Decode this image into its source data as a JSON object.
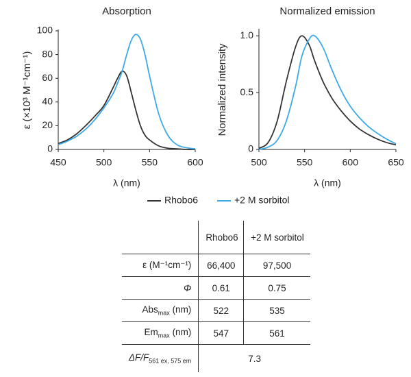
{
  "chart_data": [
    {
      "type": "line",
      "title": "Absorption",
      "x_label": "λ (nm)",
      "y_label": "ε (×10³ M⁻¹cm⁻¹)",
      "x": [
        450,
        460,
        470,
        480,
        490,
        500,
        510,
        515,
        520,
        525,
        530,
        535,
        540,
        545,
        550,
        560,
        570,
        580,
        590,
        600
      ],
      "series": [
        {
          "name": "Rhobo6",
          "color": "#333333",
          "values": [
            5,
            8,
            13,
            20,
            28,
            37,
            52,
            60,
            66,
            62,
            48,
            33,
            20,
            12,
            8,
            3,
            1,
            0.5,
            0,
            0
          ]
        },
        {
          "name": "+2 M sorbitol",
          "color": "#3fa9e8",
          "values": [
            4,
            7,
            11,
            17,
            25,
            35,
            47,
            56,
            66,
            80,
            92,
            97,
            93,
            80,
            62,
            30,
            12,
            4,
            1.5,
            0.5
          ]
        }
      ],
      "xlim": [
        450,
        600
      ],
      "xticks": [
        450,
        500,
        550,
        600
      ],
      "ylim": [
        0,
        100
      ],
      "yticks": [
        0,
        20,
        40,
        60,
        80,
        100
      ]
    },
    {
      "type": "line",
      "title": "Normalized emission",
      "x_label": "λ (nm)",
      "y_label": "Normalized intensity",
      "x": [
        500,
        510,
        520,
        530,
        540,
        547,
        555,
        561,
        570,
        580,
        590,
        600,
        610,
        620,
        630,
        640,
        650
      ],
      "series": [
        {
          "color": "#333333",
          "values": [
            0.01,
            0.06,
            0.25,
            0.6,
            0.9,
            1.0,
            0.92,
            0.78,
            0.6,
            0.45,
            0.34,
            0.25,
            0.18,
            0.13,
            0.09,
            0.06,
            0.04
          ]
        },
        {
          "color": "#3fa9e8",
          "values": [
            0,
            0.02,
            0.08,
            0.25,
            0.55,
            0.82,
            0.97,
            1.0,
            0.9,
            0.7,
            0.52,
            0.38,
            0.28,
            0.2,
            0.14,
            0.09,
            0.05
          ]
        }
      ],
      "xlim": [
        500,
        650
      ],
      "xticks": [
        500,
        550,
        600,
        650
      ],
      "ylim": [
        0,
        1.05
      ],
      "yticks": [
        0,
        0.5,
        {
          "value": 1,
          "label": "1.0"
        }
      ]
    }
  ],
  "table": {
    "columns": [
      "Rhobo6",
      "+2 M sorbitol"
    ],
    "rows": [
      {
        "label": "ε (M⁻¹cm⁻¹)",
        "values": [
          "66,400",
          "97,500"
        ]
      },
      {
        "label": "Φ",
        "values": [
          "0.61",
          "0.75"
        ]
      },
      {
        "label": "Abs",
        "sub": "max",
        "unit": "(nm)",
        "values": [
          "522",
          "535"
        ]
      },
      {
        "label": "Em",
        "sub": "max",
        "unit": "(nm)",
        "values": [
          "547",
          "561"
        ]
      },
      {
        "label": "ΔF/F",
        "sub": "561 ex, 575 em",
        "value": "7.3"
      }
    ]
  }
}
